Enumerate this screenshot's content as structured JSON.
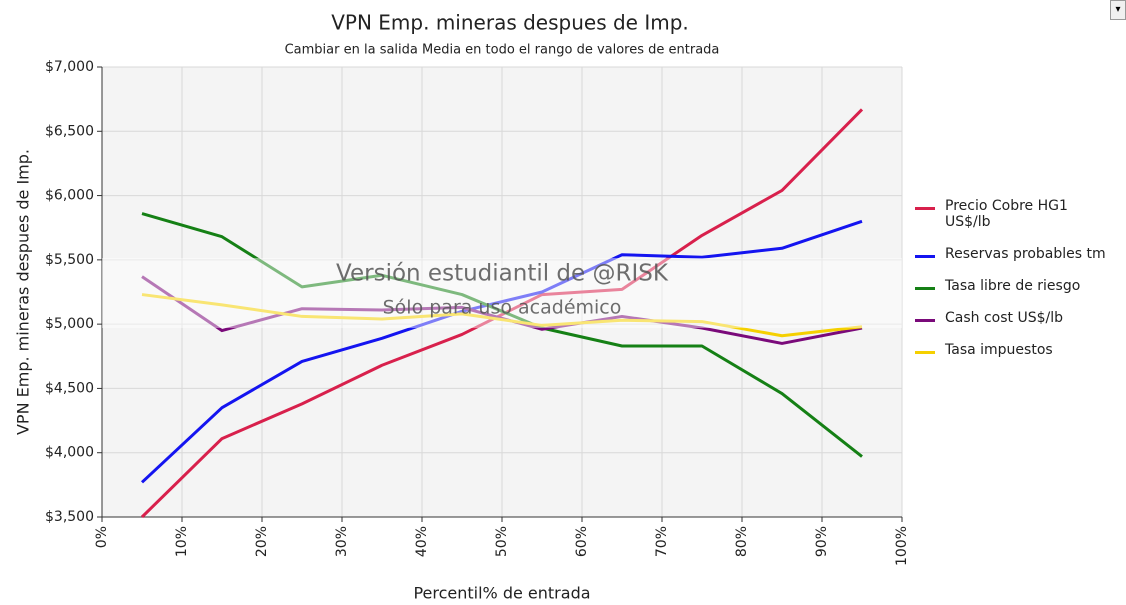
{
  "chart_data": {
    "type": "line",
    "title": "VPN Emp. mineras despues de Imp.",
    "subtitle": "Cambiar en la salida Media en todo el rango de valores de entrada",
    "x_label": "Percentil% de entrada",
    "y_label": "VPN Emp. mineras despues de Imp.",
    "watermark": [
      "Versión estudiantil de @RISK",
      "Sólo para uso académico"
    ],
    "x": [
      5,
      15,
      25,
      35,
      45,
      55,
      65,
      75,
      85,
      95
    ],
    "series": [
      {
        "name": "Precio Cobre HG1 US$/lb",
        "color": "#d8204c",
        "values": [
          3500,
          4110,
          4380,
          4680,
          4920,
          5230,
          5270,
          5690,
          6040,
          6670
        ]
      },
      {
        "name": "Reservas probables tm",
        "color": "#1414f0",
        "values": [
          3770,
          4350,
          4710,
          4890,
          5100,
          5250,
          5540,
          5520,
          5590,
          5800
        ]
      },
      {
        "name": "Tasa libre de riesgo",
        "color": "#158015",
        "values": [
          5860,
          5680,
          5290,
          5380,
          5230,
          4970,
          4830,
          4830,
          4460,
          3970
        ]
      },
      {
        "name": "Cash cost US$/lb",
        "color": "#7a0a7a",
        "values": [
          5370,
          4950,
          5120,
          5110,
          5130,
          4960,
          5060,
          4970,
          4850,
          4970
        ]
      },
      {
        "name": "Tasa impuestos",
        "color": "#f5d000",
        "values": [
          5230,
          5150,
          5060,
          5040,
          5080,
          4990,
          5030,
          5020,
          4910,
          4980
        ]
      }
    ],
    "xlim": [
      0,
      100
    ],
    "xticks": [
      {
        "value": 0,
        "label": "0%"
      },
      {
        "value": 10,
        "label": "10%"
      },
      {
        "value": 20,
        "label": "20%"
      },
      {
        "value": 30,
        "label": "30%"
      },
      {
        "value": 40,
        "label": "40%"
      },
      {
        "value": 50,
        "label": "50%"
      },
      {
        "value": 60,
        "label": "60%"
      },
      {
        "value": 70,
        "label": "70%"
      },
      {
        "value": 80,
        "label": "80%"
      },
      {
        "value": 90,
        "label": "90%"
      },
      {
        "value": 100,
        "label": "100%"
      }
    ],
    "ylim": [
      3500,
      7000
    ],
    "yticks": [
      {
        "value": 3500,
        "label": "$3,500"
      },
      {
        "value": 4000,
        "label": "$4,000"
      },
      {
        "value": 4500,
        "label": "$4,500"
      },
      {
        "value": 5000,
        "label": "$5,000"
      },
      {
        "value": 5500,
        "label": "$5,500"
      },
      {
        "value": 6000,
        "label": "$6,000"
      },
      {
        "value": 6500,
        "label": "$6,500"
      },
      {
        "value": 7000,
        "label": "$7,000"
      }
    ],
    "grid": true,
    "legend": "right"
  }
}
